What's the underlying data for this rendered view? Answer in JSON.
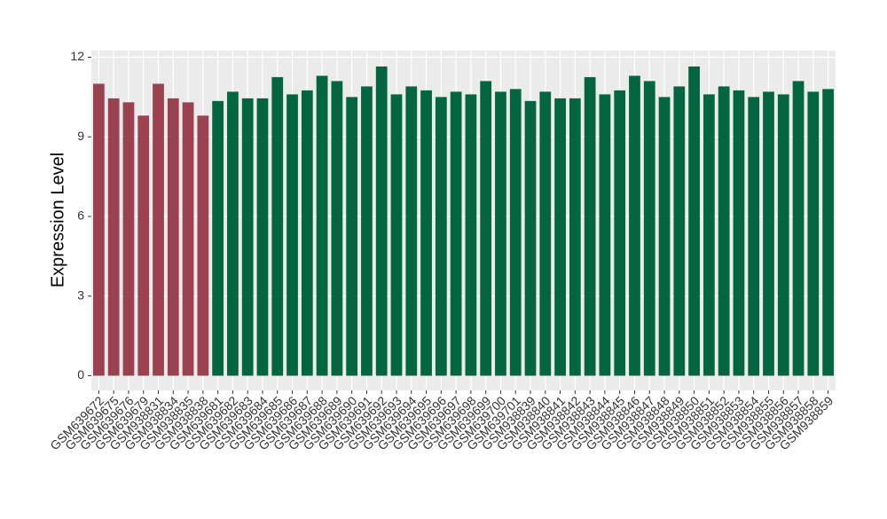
{
  "chart_data": {
    "type": "bar",
    "y_label": "Expression Level",
    "categories": [
      "GSM639672",
      "GSM639675",
      "GSM639676",
      "GSM639679",
      "GSM938831",
      "GSM938834",
      "GSM938835",
      "GSM938838",
      "GSM639681",
      "GSM639682",
      "GSM639683",
      "GSM639684",
      "GSM639685",
      "GSM639686",
      "GSM639687",
      "GSM639688",
      "GSM639689",
      "GSM639690",
      "GSM639691",
      "GSM639692",
      "GSM639693",
      "GSM639694",
      "GSM639695",
      "GSM639696",
      "GSM639697",
      "GSM639698",
      "GSM639699",
      "GSM639700",
      "GSM639701",
      "GSM938839",
      "GSM938840",
      "GSM938841",
      "GSM938842",
      "GSM938843",
      "GSM938844",
      "GSM938845",
      "GSM938846",
      "GSM938847",
      "GSM938848",
      "GSM938849",
      "GSM938850",
      "GSM938851",
      "GSM938852",
      "GSM938853",
      "GSM938854",
      "GSM938855",
      "GSM938856",
      "GSM938857",
      "GSM938858",
      "GSM938859"
    ],
    "values": [
      11.0,
      10.45,
      10.3,
      9.8,
      11.0,
      10.45,
      10.3,
      9.8,
      10.35,
      10.7,
      10.45,
      10.45,
      11.25,
      10.6,
      10.75,
      11.3,
      11.1,
      10.5,
      10.9,
      11.65,
      10.6,
      10.9,
      10.75,
      10.5,
      10.7,
      10.6,
      11.1,
      10.7,
      10.8,
      10.35,
      10.7,
      10.45,
      10.45,
      11.25,
      10.6,
      10.75,
      11.3,
      11.1,
      10.5,
      10.9,
      11.65,
      10.6,
      10.9,
      10.75,
      10.5,
      10.7,
      10.6,
      11.1,
      10.7,
      10.8
    ],
    "colors": [
      "#9b4251",
      "#9b4251",
      "#9b4251",
      "#9b4251",
      "#9b4251",
      "#9b4251",
      "#9b4251",
      "#9b4251",
      "#036641",
      "#036641",
      "#036641",
      "#036641",
      "#036641",
      "#036641",
      "#036641",
      "#036641",
      "#036641",
      "#036641",
      "#036641",
      "#036641",
      "#036641",
      "#036641",
      "#036641",
      "#036641",
      "#036641",
      "#036641",
      "#036641",
      "#036641",
      "#036641",
      "#036641",
      "#036641",
      "#036641",
      "#036641",
      "#036641",
      "#036641",
      "#036641",
      "#036641",
      "#036641",
      "#036641",
      "#036641",
      "#036641",
      "#036641",
      "#036641",
      "#036641",
      "#036641",
      "#036641",
      "#036641",
      "#036641",
      "#036641",
      "#036641"
    ],
    "ylim": [
      -0.55,
      12.25
    ],
    "yticks": [
      0,
      3,
      6,
      9,
      12
    ],
    "grid": true
  }
}
